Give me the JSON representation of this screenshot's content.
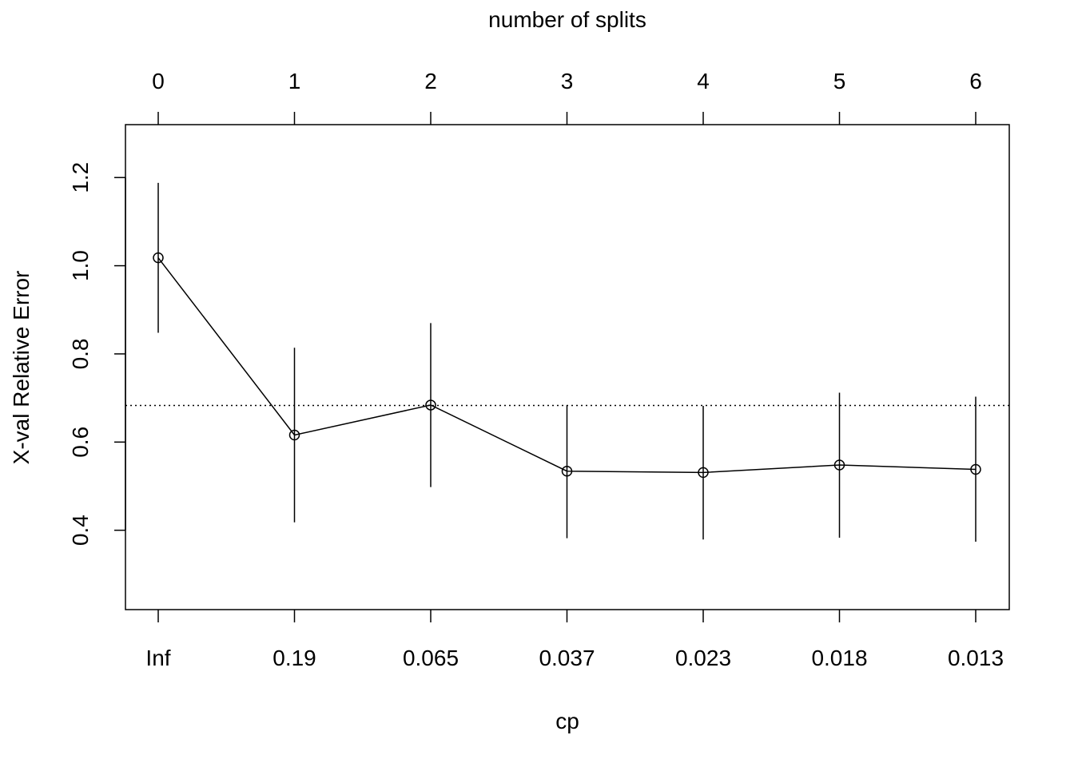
{
  "chart_data": {
    "type": "line",
    "top_axis_label": "number of splits",
    "xlabel": "cp",
    "ylabel": "X-val Relative Error",
    "top_ticks": [
      "0",
      "1",
      "2",
      "3",
      "4",
      "5",
      "6"
    ],
    "x_tick_labels": [
      "Inf",
      "0.19",
      "0.065",
      "0.037",
      "0.023",
      "0.018",
      "0.013"
    ],
    "y_ticks": [
      "0.4",
      "0.6",
      "0.8",
      "1.0",
      "1.2"
    ],
    "ylim": [
      0.22,
      1.32
    ],
    "reference_line": 0.683,
    "grid": false,
    "series": [
      {
        "values": [
          1.018,
          0.616,
          0.684,
          0.534,
          0.531,
          0.548,
          0.538
        ],
        "lower": [
          0.848,
          0.418,
          0.498,
          0.382,
          0.379,
          0.383,
          0.374
        ],
        "upper": [
          1.188,
          0.814,
          0.87,
          0.684,
          0.682,
          0.712,
          0.703
        ]
      }
    ]
  }
}
